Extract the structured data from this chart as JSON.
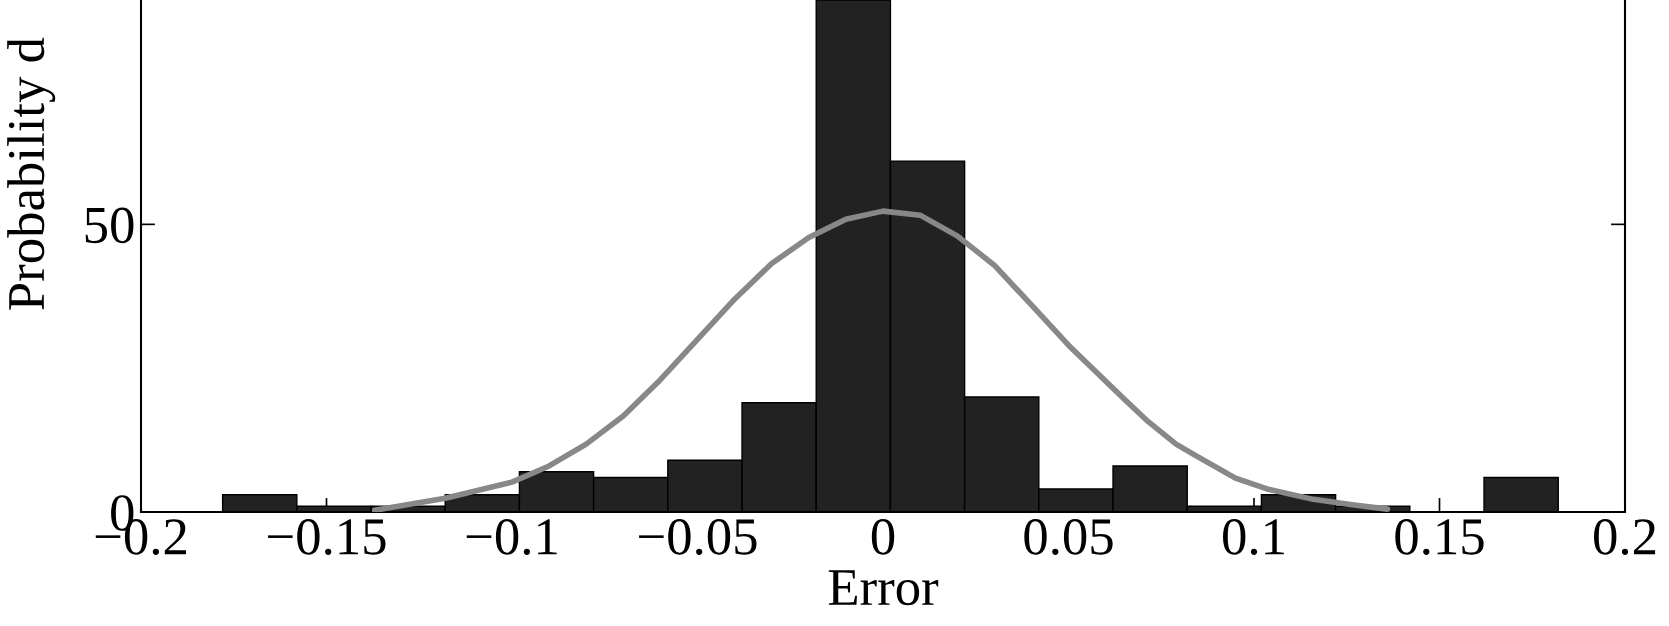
{
  "chart_data": {
    "type": "histogram",
    "xlabel": "Error",
    "ylabel": "Probability d",
    "bins": [
      -0.178,
      -0.158,
      -0.138,
      -0.118,
      -0.098,
      -0.078,
      -0.058,
      -0.038,
      -0.018,
      0.002,
      0.022,
      0.042,
      0.062,
      0.082,
      0.102,
      0.122,
      0.142,
      0.162,
      0.182
    ],
    "values": [
      3,
      1,
      1,
      3,
      7,
      6,
      9,
      19,
      89,
      61,
      20,
      4,
      8,
      1,
      3,
      1,
      0,
      6
    ],
    "color": "#222222",
    "series": [
      {
        "type": "line",
        "color": "#888888",
        "x": [
          -0.137,
          -0.118,
          -0.1,
          -0.09,
          -0.08,
          -0.07,
          -0.06,
          -0.05,
          -0.04,
          -0.03,
          -0.02,
          -0.01,
          0,
          0.01,
          0.02,
          0.03,
          0.04,
          0.05,
          0.0652,
          0.0715,
          0.079,
          0.0843,
          0.095,
          0.1035,
          0.116,
          0.127,
          0.136
        ],
        "values": [
          0.3,
          2.4,
          5.2,
          8,
          11.8,
          16.7,
          23,
          30,
          37,
          43.2,
          47.7,
          50.9,
          52.3,
          51.6,
          48,
          42.9,
          36,
          29,
          19.5,
          15.7,
          11.8,
          9.8,
          5.9,
          4.0,
          2.2,
          1.2,
          0.5
        ]
      }
    ],
    "xlim": [
      -0.2,
      0.2
    ],
    "xticks": [
      {
        "value": -0.2,
        "label": "−0.2"
      },
      {
        "value": -0.15,
        "label": "−0.15"
      },
      {
        "value": -0.1,
        "label": "−0.1"
      },
      {
        "value": -0.05,
        "label": "−0.05"
      },
      0,
      0.05,
      0.1,
      0.15,
      0.2
    ],
    "ylim": [
      0,
      89
    ],
    "yticks": [
      0,
      50
    ],
    "grid": false,
    "legend": false
  }
}
